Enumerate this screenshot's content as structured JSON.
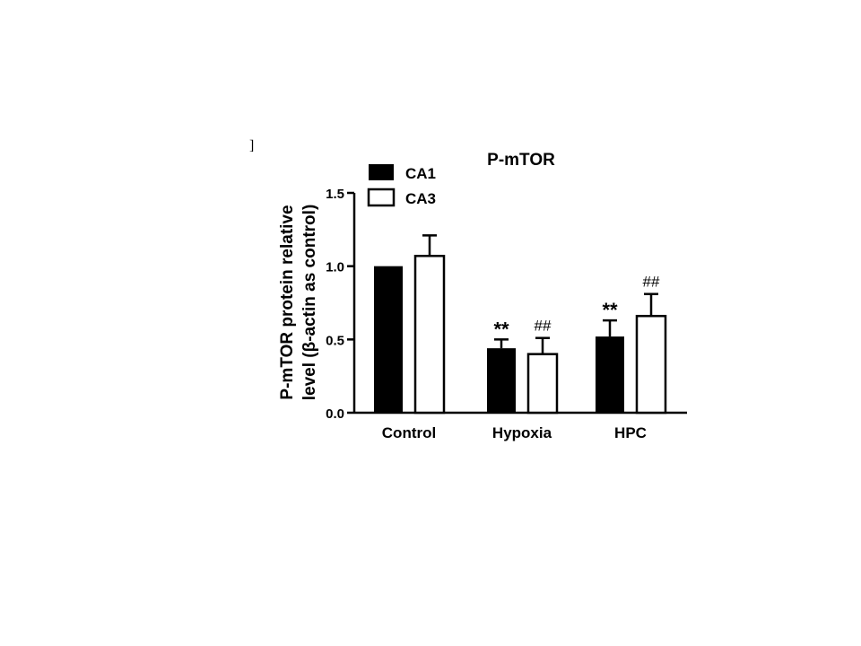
{
  "corner_mark": "]",
  "chart_data": {
    "type": "bar",
    "title": "P-mTOR",
    "ylabel": "P-mTOR protein relative level (β-actin as control)",
    "ylabel_lines": [
      "P-mTOR protein relative",
      "level (β-actin as control)"
    ],
    "xlabel": "",
    "categories": [
      "Control",
      "Hypoxia",
      "HPC"
    ],
    "ylim": [
      0,
      1.5
    ],
    "yticks": [
      0.0,
      0.5,
      1.0,
      1.5
    ],
    "ytick_labels": [
      "0.0",
      "0.5",
      "1.0",
      "1.5"
    ],
    "legend_position": "top-left",
    "grid": false,
    "series": [
      {
        "name": "CA1",
        "color": "#000000",
        "fill": "solid",
        "values": [
          1.0,
          0.44,
          0.52
        ],
        "errors": [
          0,
          0.06,
          0.11
        ],
        "annotations": [
          "",
          "**",
          "**"
        ]
      },
      {
        "name": "CA3",
        "color": "#ffffff",
        "fill": "open",
        "values": [
          1.07,
          0.4,
          0.66
        ],
        "errors": [
          0.14,
          0.11,
          0.15
        ],
        "annotations": [
          "",
          "##",
          "##"
        ]
      }
    ]
  }
}
